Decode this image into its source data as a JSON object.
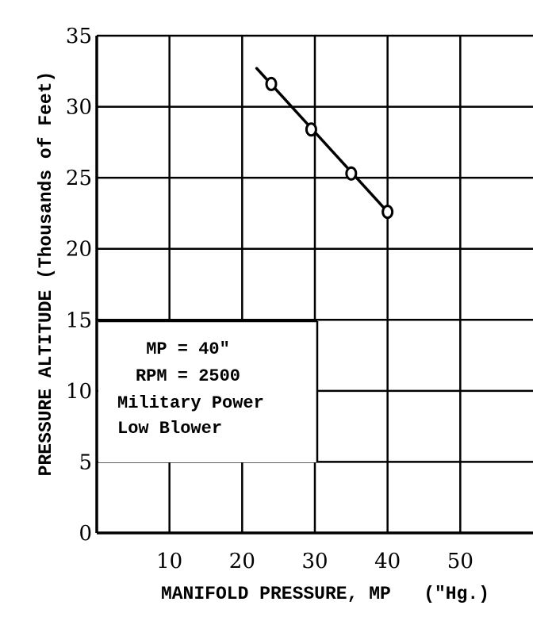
{
  "chart_data": {
    "type": "line",
    "xlabel": "MANIFOLD PRESSURE, MP   (\"Hg.)",
    "ylabel": "PRESSURE ALTITUDE (Thousands of Feet)",
    "xlim": [
      0,
      60
    ],
    "ylim": [
      0,
      35
    ],
    "xticks": [
      "10",
      "20",
      "30",
      "40",
      "50"
    ],
    "yticks": [
      "0",
      "5",
      "10",
      "15",
      "20",
      "25",
      "30",
      "35"
    ],
    "grid": true,
    "series": [
      {
        "points": [
          [
            24,
            31.6
          ],
          [
            29.5,
            28.4
          ],
          [
            35,
            25.3
          ],
          [
            40,
            22.6
          ]
        ],
        "line": [
          [
            22,
            32.7
          ],
          [
            40,
            22.6
          ]
        ]
      }
    ],
    "annotations": [
      "MP = 40\"",
      "RPM = 2500",
      "Military Power",
      "Low Blower"
    ]
  }
}
